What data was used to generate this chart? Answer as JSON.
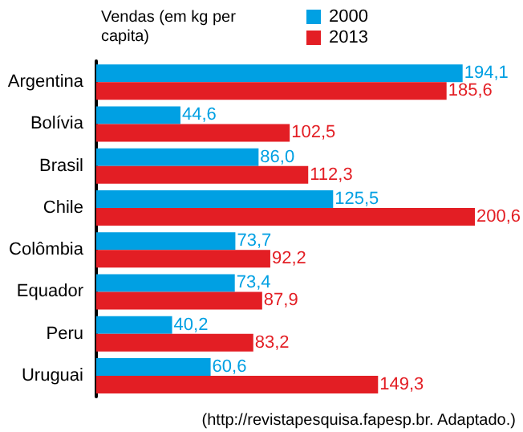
{
  "chart_data": {
    "type": "bar",
    "orientation": "horizontal",
    "title": "Vendas (em kg per capita)",
    "categories": [
      "Argentina",
      "Bolívia",
      "Brasil",
      "Chile",
      "Colômbia",
      "Equador",
      "Peru",
      "Uruguai"
    ],
    "series": [
      {
        "name": "2000",
        "color": "#00a0e3",
        "values": [
          194.1,
          44.6,
          86.0,
          125.5,
          73.7,
          73.4,
          40.2,
          60.6
        ],
        "value_labels": [
          "194,1",
          "44,6",
          "86,0",
          "125,5",
          "73,7",
          "73,4",
          "40,2",
          "60,6"
        ]
      },
      {
        "name": "2013",
        "color": "#e31e24",
        "values": [
          185.6,
          102.5,
          112.3,
          200.6,
          92.2,
          87.9,
          83.2,
          149.3
        ],
        "value_labels": [
          "185,6",
          "102,5",
          "112,3",
          "200,6",
          "92,2",
          "87,9",
          "83,2",
          "149,3"
        ]
      }
    ],
    "legend": "top right",
    "annotations": [
      "(http://revistapesquisa.fapesp.br. Adaptado.)"
    ]
  }
}
